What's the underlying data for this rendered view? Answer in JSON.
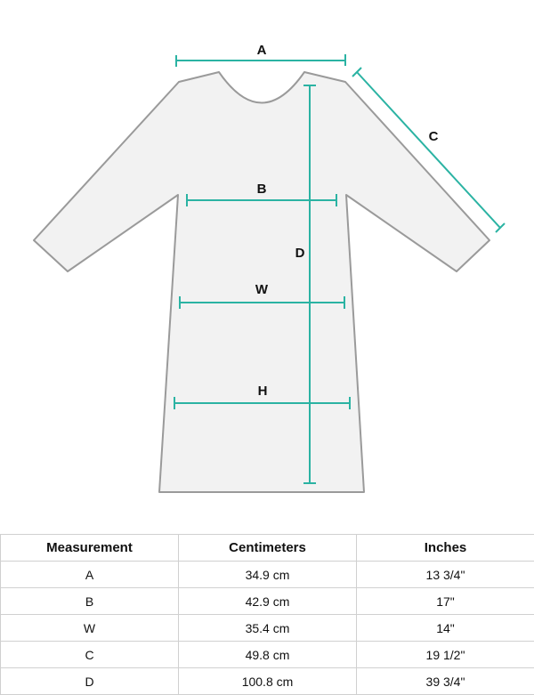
{
  "diagram": {
    "labels": {
      "A": "A",
      "B": "B",
      "C": "C",
      "D": "D",
      "W": "W",
      "H": "H"
    },
    "colors": {
      "measure_line": "#2bb3a3",
      "garment_fill": "#f2f2f2",
      "garment_outline": "#9a9a9a"
    }
  },
  "table": {
    "headers": [
      "Measurement",
      "Centimeters",
      "Inches"
    ],
    "rows": [
      [
        "A",
        "34.9 cm",
        "13 3/4\""
      ],
      [
        "B",
        "42.9 cm",
        "17\""
      ],
      [
        "W",
        "35.4 cm",
        "14\""
      ],
      [
        "C",
        "49.8 cm",
        "19 1/2\""
      ],
      [
        "D",
        "100.8 cm",
        "39 3/4\""
      ]
    ]
  }
}
